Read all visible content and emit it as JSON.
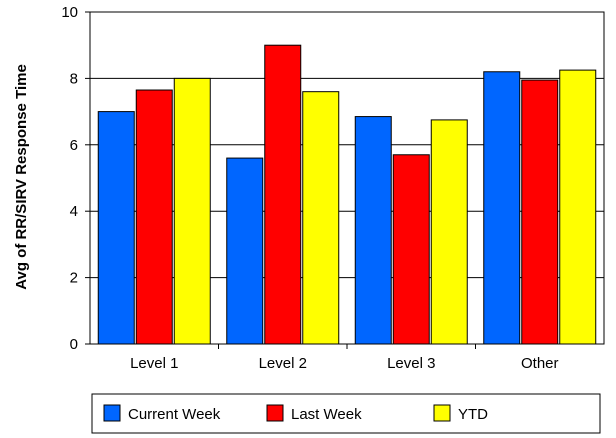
{
  "chart_data": {
    "type": "bar",
    "categories": [
      "Level 1",
      "Level 2",
      "Level 3",
      "Other"
    ],
    "series": [
      {
        "name": "Current Week",
        "values": [
          7.0,
          5.6,
          6.85,
          8.2
        ],
        "color": "#0066FF"
      },
      {
        "name": "Last Week",
        "values": [
          7.65,
          9.0,
          5.7,
          7.95
        ],
        "color": "#FF0000"
      },
      {
        "name": "YTD",
        "values": [
          8.0,
          7.6,
          6.75,
          8.25
        ],
        "color": "#FFFF00"
      }
    ],
    "title": "",
    "xlabel": "",
    "ylabel": "Avg of RR/SIRV Response Time",
    "ylim": [
      0,
      10
    ],
    "yticks": [
      0,
      2,
      4,
      6,
      8,
      10
    ],
    "grid": true,
    "legend_position": "bottom"
  }
}
